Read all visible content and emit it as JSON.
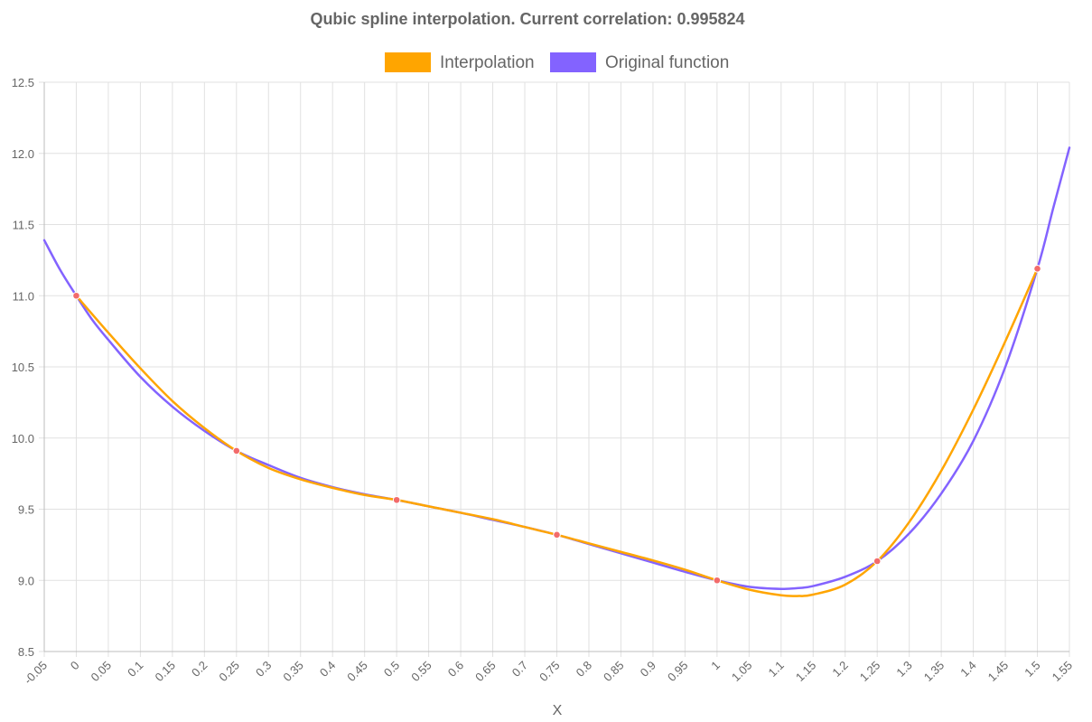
{
  "chart_data": {
    "type": "line",
    "title": "Qubic spline interpolation. Current correlation: 0.995824",
    "xlabel": "X",
    "ylabel": "",
    "x_ticks": [
      "-0.05",
      "0",
      "0.05",
      "0.1",
      "0.15",
      "0.2",
      "0.25",
      "0.3",
      "0.35",
      "0.4",
      "0.45",
      "0.5",
      "0.55",
      "0.6",
      "0.65",
      "0.7",
      "0.75",
      "0.8",
      "0.85",
      "0.9",
      "0.95",
      "1",
      "1.05",
      "1.1",
      "1.15",
      "1.2",
      "1.25",
      "1.3",
      "1.35",
      "1.4",
      "1.45",
      "1.5",
      "1.55"
    ],
    "y_ticks": [
      "8.5",
      "9.0",
      "9.5",
      "10.0",
      "10.5",
      "11.0",
      "11.5",
      "12.0",
      "12.5"
    ],
    "xlim": [
      -0.05,
      1.55
    ],
    "ylim": [
      8.5,
      12.5
    ],
    "grid": true,
    "legend_position": "top",
    "series": [
      {
        "name": "Interpolation",
        "color": "#FFA500",
        "x": [
          0,
          0.05,
          0.1,
          0.15,
          0.2,
          0.25,
          0.3,
          0.35,
          0.4,
          0.45,
          0.5,
          0.55,
          0.6,
          0.65,
          0.7,
          0.75,
          0.8,
          0.85,
          0.9,
          0.95,
          1,
          1.05,
          1.1,
          1.125,
          1.15,
          1.2,
          1.25,
          1.3,
          1.35,
          1.4,
          1.45,
          1.5
        ],
        "values": [
          11.0,
          10.74,
          10.49,
          10.26,
          10.07,
          9.91,
          9.79,
          9.71,
          9.65,
          9.6,
          9.565,
          9.52,
          9.475,
          9.43,
          9.375,
          9.32,
          9.26,
          9.2,
          9.14,
          9.075,
          9.0,
          8.935,
          8.895,
          8.89,
          8.9,
          8.97,
          9.135,
          9.41,
          9.77,
          10.2,
          10.68,
          11.19
        ]
      },
      {
        "name": "Original function",
        "color": "#8363FF",
        "x": [
          -0.05,
          -0.025,
          0,
          0.025,
          0.05,
          0.1,
          0.15,
          0.2,
          0.25,
          0.3,
          0.35,
          0.4,
          0.45,
          0.5,
          0.55,
          0.6,
          0.65,
          0.7,
          0.75,
          0.8,
          0.85,
          0.9,
          0.95,
          1,
          1.05,
          1.1,
          1.125,
          1.15,
          1.2,
          1.25,
          1.3,
          1.35,
          1.4,
          1.45,
          1.5,
          1.525,
          1.55
        ],
        "values": [
          11.39,
          11.18,
          11.0,
          10.83,
          10.69,
          10.43,
          10.22,
          10.05,
          9.91,
          9.81,
          9.72,
          9.655,
          9.605,
          9.565,
          9.52,
          9.475,
          9.425,
          9.375,
          9.32,
          9.255,
          9.19,
          9.125,
          9.06,
          9.0,
          8.955,
          8.94,
          8.945,
          8.96,
          9.025,
          9.135,
          9.33,
          9.61,
          9.98,
          10.5,
          11.19,
          11.62,
          12.04
        ]
      }
    ],
    "markers": {
      "color": "#F26B6B",
      "x": [
        0,
        0.25,
        0.5,
        0.75,
        1,
        1.25,
        1.5
      ],
      "values": [
        11.0,
        9.91,
        9.565,
        9.32,
        9.0,
        9.135,
        11.19
      ]
    },
    "grid_color": "#E1E1E1",
    "text_color": "#666666"
  }
}
